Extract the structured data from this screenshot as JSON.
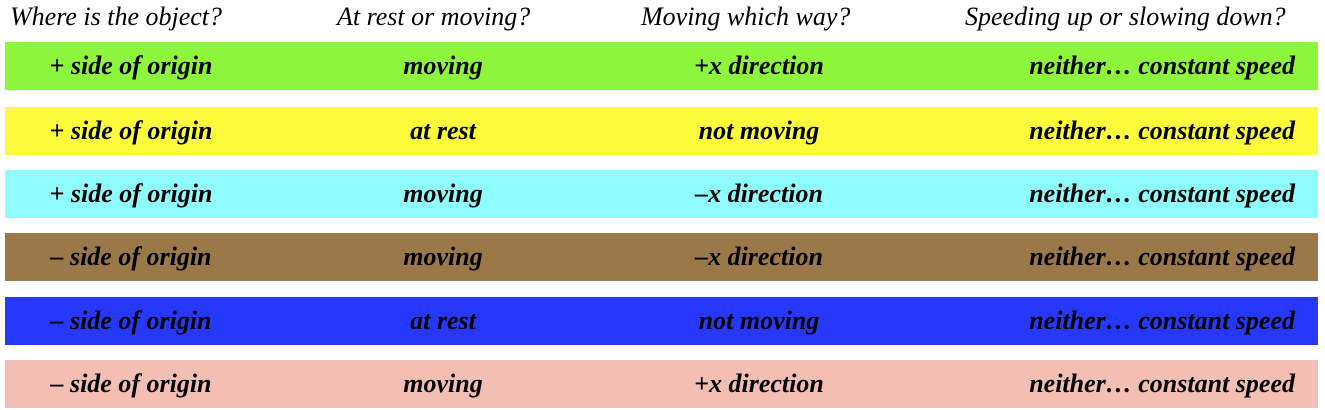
{
  "headers": [
    "Where is the object?",
    "At rest or moving?",
    "Moving which way?",
    "Speeding up or slowing down?"
  ],
  "rows": [
    {
      "color": "#8cf53c",
      "cells": [
        "+ side of origin",
        "moving",
        "+x direction",
        "neither… constant speed"
      ]
    },
    {
      "color": "#fbfb3c",
      "cells": [
        "+ side of origin",
        "at rest",
        "not moving",
        "neither… constant speed"
      ]
    },
    {
      "color": "#8efcfc",
      "cells": [
        "+ side of origin",
        "moving",
        "–x direction",
        "neither… constant speed"
      ]
    },
    {
      "color": "#9b7847",
      "cells": [
        "– side of origin",
        "moving",
        "–x direction",
        "neither… constant speed"
      ]
    },
    {
      "color": "#2638fb",
      "cells": [
        "– side of origin",
        "at rest",
        "not moving",
        "neither… constant speed"
      ]
    },
    {
      "color": "#f3beb4",
      "cells": [
        "– side of origin",
        "moving",
        "+x direction",
        "neither… constant speed"
      ]
    }
  ]
}
